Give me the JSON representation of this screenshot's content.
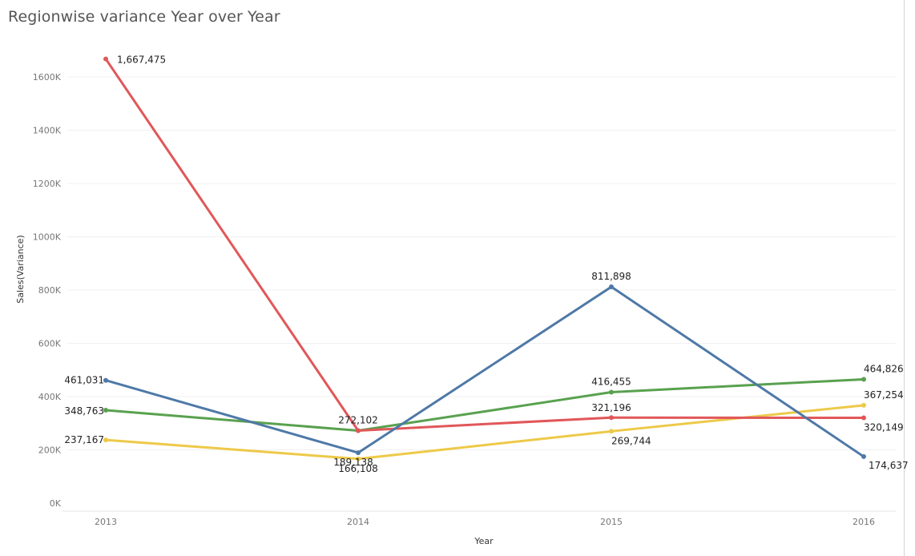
{
  "chart_data": {
    "type": "line",
    "title": "Regionwise variance Year over Year",
    "xlabel": "Year",
    "ylabel": "Sales(Variance)",
    "categories": [
      "2013",
      "2014",
      "2015",
      "2016"
    ],
    "ylim": [
      0,
      1700000
    ],
    "yticks": [
      0,
      200000,
      400000,
      600000,
      800000,
      1000000,
      1200000,
      1400000,
      1600000
    ],
    "ytick_labels": [
      "0K",
      "200K",
      "400K",
      "600K",
      "800K",
      "1000K",
      "1200K",
      "1400K",
      "1600K"
    ],
    "grid": true,
    "series": [
      {
        "color": "#4e79a7",
        "values": [
          461031,
          189138,
          811898,
          174637
        ],
        "labels": [
          "461,031",
          "189,138",
          "811,898",
          "174,637"
        ]
      },
      {
        "color": "#e15759",
        "values": [
          1667475,
          272102,
          321196,
          320149
        ],
        "labels": [
          "1,667,475",
          "272,102",
          "321,196",
          "320,149"
        ]
      },
      {
        "color": "#59a14f",
        "values": [
          348763,
          272102,
          416455,
          464826
        ],
        "labels": [
          "348,763",
          "",
          "416,455",
          "464,826"
        ]
      },
      {
        "color": "#edc948",
        "values": [
          237167,
          166108,
          269744,
          367254
        ],
        "labels": [
          "237,167",
          "166,108",
          "269,744",
          "367,254"
        ]
      }
    ]
  }
}
